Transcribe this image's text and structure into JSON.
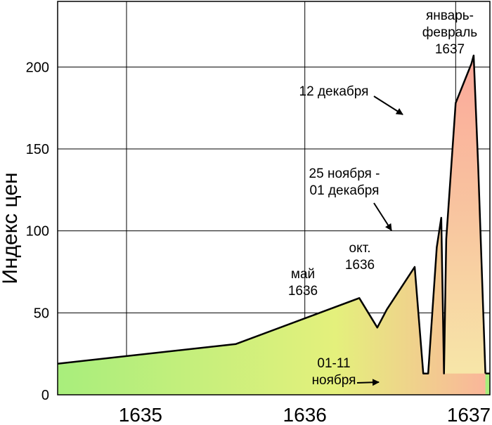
{
  "chart_data": {
    "type": "area",
    "title": "",
    "xlabel": "",
    "ylabel": "Индекс цен",
    "xlim": [
      "1634-07-01",
      "1637-02-15"
    ],
    "ylim": [
      0,
      240
    ],
    "y_ticks": [
      0,
      50,
      100,
      150,
      200
    ],
    "x_ticks": [
      {
        "date": "1635-01-01",
        "label": "1635"
      },
      {
        "date": "1636-01-01",
        "label": "1636"
      },
      {
        "date": "1637-01-01",
        "label": "1637"
      }
    ],
    "grid": true,
    "background_level": 13,
    "points": [
      {
        "date": "1634-07-01",
        "value": 19
      },
      {
        "date": "1635-08-01",
        "value": 31
      },
      {
        "date": "1636-05-01",
        "value": 59
      },
      {
        "date": "1636-06-10",
        "value": 41
      },
      {
        "date": "1636-07-01",
        "value": 52
      },
      {
        "date": "1636-09-01",
        "value": 78
      },
      {
        "date": "1636-09-20",
        "value": 13
      },
      {
        "date": "1636-10-01",
        "value": 13
      },
      {
        "date": "1636-10-20",
        "value": 90
      },
      {
        "date": "1636-10-30",
        "value": 108
      },
      {
        "date": "1636-11-05",
        "value": 13
      },
      {
        "date": "1636-11-10",
        "value": 95
      },
      {
        "date": "1636-12-01",
        "value": 178
      },
      {
        "date": "1637-01-05",
        "value": 202
      },
      {
        "date": "1637-01-10",
        "value": 207
      },
      {
        "date": "1637-01-20",
        "value": 140
      },
      {
        "date": "1637-02-05",
        "value": 13
      }
    ],
    "annotations": [
      {
        "id": "jan-feb",
        "lines": [
          "январь-",
          "февраль",
          "1637"
        ],
        "arrow": false
      },
      {
        "id": "dec12",
        "lines": [
          "12 декабря"
        ],
        "arrow": true
      },
      {
        "id": "nov25",
        "lines": [
          "25 ноября -",
          "01 декабря"
        ],
        "arrow": true
      },
      {
        "id": "oct",
        "lines": [
          "окт.",
          "1636"
        ],
        "arrow": false
      },
      {
        "id": "may",
        "lines": [
          "май",
          "1636"
        ],
        "arrow": false
      },
      {
        "id": "nov01",
        "lines": [
          "01-11",
          "ноября"
        ],
        "arrow": true
      }
    ],
    "colors": {
      "fill_low": "#a8ee7c",
      "fill_mid": "#e4f07c",
      "fill_high": "#fab69a",
      "line": "#000000",
      "grid": "#000000"
    }
  }
}
